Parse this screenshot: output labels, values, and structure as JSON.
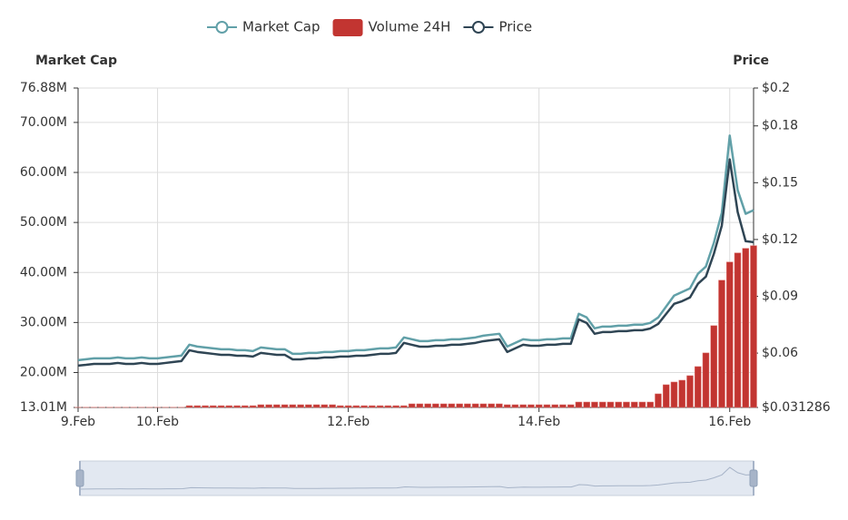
{
  "chart_data": {
    "type": "line",
    "legend": "top",
    "grid": true,
    "data_zoom": true,
    "ylabel": "Market Cap",
    "y2label": "Price",
    "categories": [
      "9.Feb",
      null,
      null,
      null,
      null,
      null,
      null,
      null,
      null,
      null,
      "10.Feb",
      null,
      null,
      null,
      null,
      null,
      null,
      null,
      null,
      null,
      null,
      null,
      null,
      null,
      null,
      null,
      null,
      null,
      null,
      null,
      null,
      null,
      null,
      null,
      "12.Feb",
      null,
      null,
      null,
      null,
      null,
      null,
      null,
      null,
      null,
      null,
      null,
      null,
      null,
      null,
      null,
      null,
      null,
      null,
      null,
      null,
      null,
      null,
      null,
      "14.Feb",
      null,
      null,
      null,
      null,
      null,
      null,
      null,
      null,
      null,
      null,
      null,
      null,
      null,
      null,
      null,
      null,
      null,
      null,
      null,
      null,
      null,
      null,
      null,
      "16.Feb",
      null,
      null,
      null
    ],
    "ylim": [
      13010000,
      76880000
    ],
    "yticks": [
      {
        "value": 13010000,
        "label": "13.01M"
      },
      {
        "value": 20000000,
        "label": "20.00M"
      },
      {
        "value": 30000000,
        "label": "30.00M"
      },
      {
        "value": 40000000,
        "label": "40.00M"
      },
      {
        "value": 50000000,
        "label": "50.00M"
      },
      {
        "value": 60000000,
        "label": "60.00M"
      },
      {
        "value": 70000000,
        "label": "70.00M"
      },
      {
        "value": 76880000,
        "label": "76.88M"
      }
    ],
    "y2lim": [
      0.031286,
      0.2
    ],
    "y2ticks": [
      {
        "value": 0.031286,
        "label": "$0.031286"
      },
      {
        "value": 0.06,
        "label": "$0.06"
      },
      {
        "value": 0.09,
        "label": "$0.09"
      },
      {
        "value": 0.12,
        "label": "$0.12"
      },
      {
        "value": 0.15,
        "label": "$0.15"
      },
      {
        "value": 0.18,
        "label": "$0.18"
      },
      {
        "value": 0.2,
        "label": "$0.2"
      }
    ],
    "series": [
      {
        "name": "Market Cap",
        "type": "line",
        "color": "#61a0a8",
        "values": [
          22460000,
          22650000,
          22830000,
          22830000,
          22830000,
          23010000,
          22830000,
          22830000,
          23010000,
          22830000,
          22830000,
          23010000,
          23190000,
          23370000,
          25560000,
          25190000,
          25010000,
          24830000,
          24650000,
          24650000,
          24460000,
          24460000,
          24280000,
          25010000,
          24830000,
          24650000,
          24650000,
          23740000,
          23740000,
          23920000,
          23920000,
          24100000,
          24100000,
          24280000,
          24280000,
          24460000,
          24460000,
          24650000,
          24830000,
          24830000,
          25010000,
          27010000,
          26650000,
          26280000,
          26280000,
          26460000,
          26460000,
          26650000,
          26650000,
          26830000,
          27010000,
          27370000,
          27560000,
          27740000,
          25190000,
          25920000,
          26650000,
          26460000,
          26460000,
          26650000,
          26650000,
          26830000,
          26830000,
          31740000,
          31010000,
          28830000,
          29190000,
          29190000,
          29370000,
          29370000,
          29560000,
          29560000,
          29920000,
          31010000,
          33190000,
          35370000,
          36100000,
          36830000,
          39740000,
          41190000,
          45920000,
          51920000,
          67370000,
          56460000,
          51740000,
          52460000
        ]
      },
      {
        "name": "Volume 24H",
        "type": "bar",
        "color": "#c23531",
        "values": [
          13050000,
          13050000,
          13050000,
          13050000,
          13050000,
          13050000,
          13050000,
          13050000,
          13050000,
          13050000,
          13050000,
          13050000,
          13050000,
          13050000,
          13370000,
          13370000,
          13370000,
          13370000,
          13370000,
          13370000,
          13370000,
          13370000,
          13370000,
          13560000,
          13560000,
          13560000,
          13560000,
          13560000,
          13560000,
          13560000,
          13560000,
          13560000,
          13560000,
          13370000,
          13370000,
          13370000,
          13370000,
          13370000,
          13370000,
          13370000,
          13370000,
          13370000,
          13740000,
          13740000,
          13740000,
          13740000,
          13740000,
          13740000,
          13740000,
          13740000,
          13740000,
          13740000,
          13740000,
          13740000,
          13560000,
          13560000,
          13560000,
          13560000,
          13560000,
          13560000,
          13560000,
          13560000,
          13560000,
          14100000,
          14100000,
          14100000,
          14100000,
          14100000,
          14100000,
          14100000,
          14100000,
          14100000,
          14100000,
          15740000,
          17560000,
          18100000,
          18460000,
          19370000,
          21190000,
          23920000,
          29370000,
          38460000,
          42100000,
          43920000,
          44830000,
          45370000
        ]
      },
      {
        "name": "Price",
        "type": "line",
        "axis": "y2",
        "color": "#2f4554",
        "values": [
          0.0534,
          0.0538,
          0.0543,
          0.0543,
          0.0543,
          0.0548,
          0.0543,
          0.0543,
          0.0548,
          0.0543,
          0.0543,
          0.0548,
          0.0553,
          0.0558,
          0.0615,
          0.0606,
          0.0601,
          0.0596,
          0.0591,
          0.0591,
          0.0586,
          0.0586,
          0.0582,
          0.0601,
          0.0596,
          0.0591,
          0.0591,
          0.0567,
          0.0567,
          0.0572,
          0.0572,
          0.0577,
          0.0577,
          0.0582,
          0.0582,
          0.0586,
          0.0586,
          0.0591,
          0.0596,
          0.0596,
          0.0601,
          0.0654,
          0.0644,
          0.0634,
          0.0634,
          0.0639,
          0.0639,
          0.0644,
          0.0644,
          0.0649,
          0.0654,
          0.0663,
          0.0668,
          0.0673,
          0.0606,
          0.0625,
          0.0644,
          0.0639,
          0.0639,
          0.0644,
          0.0644,
          0.0649,
          0.0649,
          0.0778,
          0.0759,
          0.0702,
          0.0711,
          0.0711,
          0.0716,
          0.0716,
          0.0721,
          0.0721,
          0.073,
          0.0754,
          0.0807,
          0.086,
          0.0874,
          0.0894,
          0.0966,
          0.1004,
          0.1124,
          0.1273,
          0.1623,
          0.1345,
          0.1191,
          0.1186
        ]
      }
    ]
  }
}
